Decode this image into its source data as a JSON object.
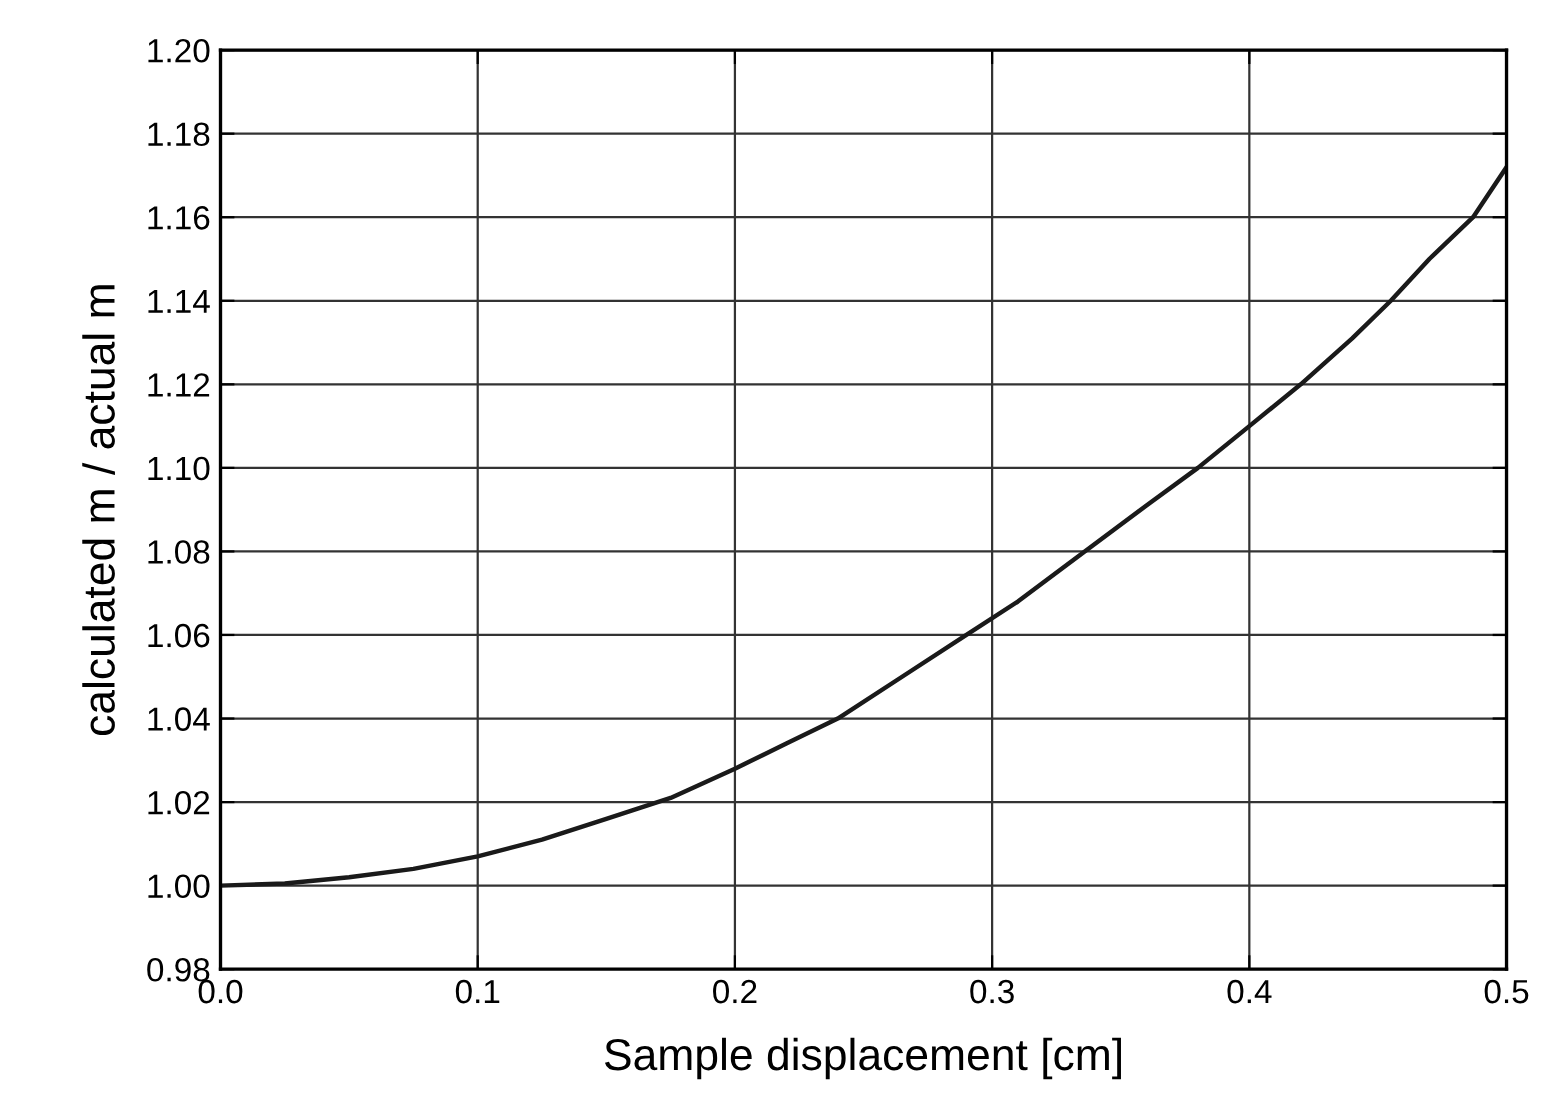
{
  "chart_data": {
    "type": "line",
    "xlabel": "Sample displacement [cm]",
    "ylabel": "calculated m / actual m",
    "x": [
      0,
      0.025,
      0.05,
      0.075,
      0.1,
      0.125,
      0.15,
      0.175,
      0.2,
      0.22,
      0.24,
      0.265,
      0.29,
      0.31,
      0.336,
      0.36,
      0.38,
      0.4,
      0.42,
      0.44,
      0.455,
      0.47,
      0.487,
      0.5
    ],
    "series": [
      {
        "color": "#1a1a1a",
        "values": [
          1.0,
          1.0005,
          1.002,
          1.004,
          1.007,
          1.011,
          1.016,
          1.021,
          1.028,
          1.034,
          1.04,
          1.05,
          1.06,
          1.068,
          1.08,
          1.091,
          1.1,
          1.11,
          1.12,
          1.131,
          1.14,
          1.15,
          1.16,
          1.172
        ]
      }
    ],
    "xlim": [
      0,
      0.5
    ],
    "ylim": [
      0.98,
      1.2
    ],
    "xticks": [
      {
        "value": 0,
        "label": "0.0"
      },
      0.1,
      0.2,
      0.3,
      0.4,
      0.5
    ],
    "yticks": [
      0.98,
      {
        "value": 1.0,
        "label": "1.00"
      },
      1.02,
      1.04,
      1.06,
      1.08,
      {
        "value": 1.1,
        "label": "1.10"
      },
      1.12,
      1.14,
      1.16,
      1.18,
      {
        "value": 1.2,
        "label": "1.20"
      }
    ],
    "grid": true,
    "marker": "none",
    "line_style": "solid"
  }
}
